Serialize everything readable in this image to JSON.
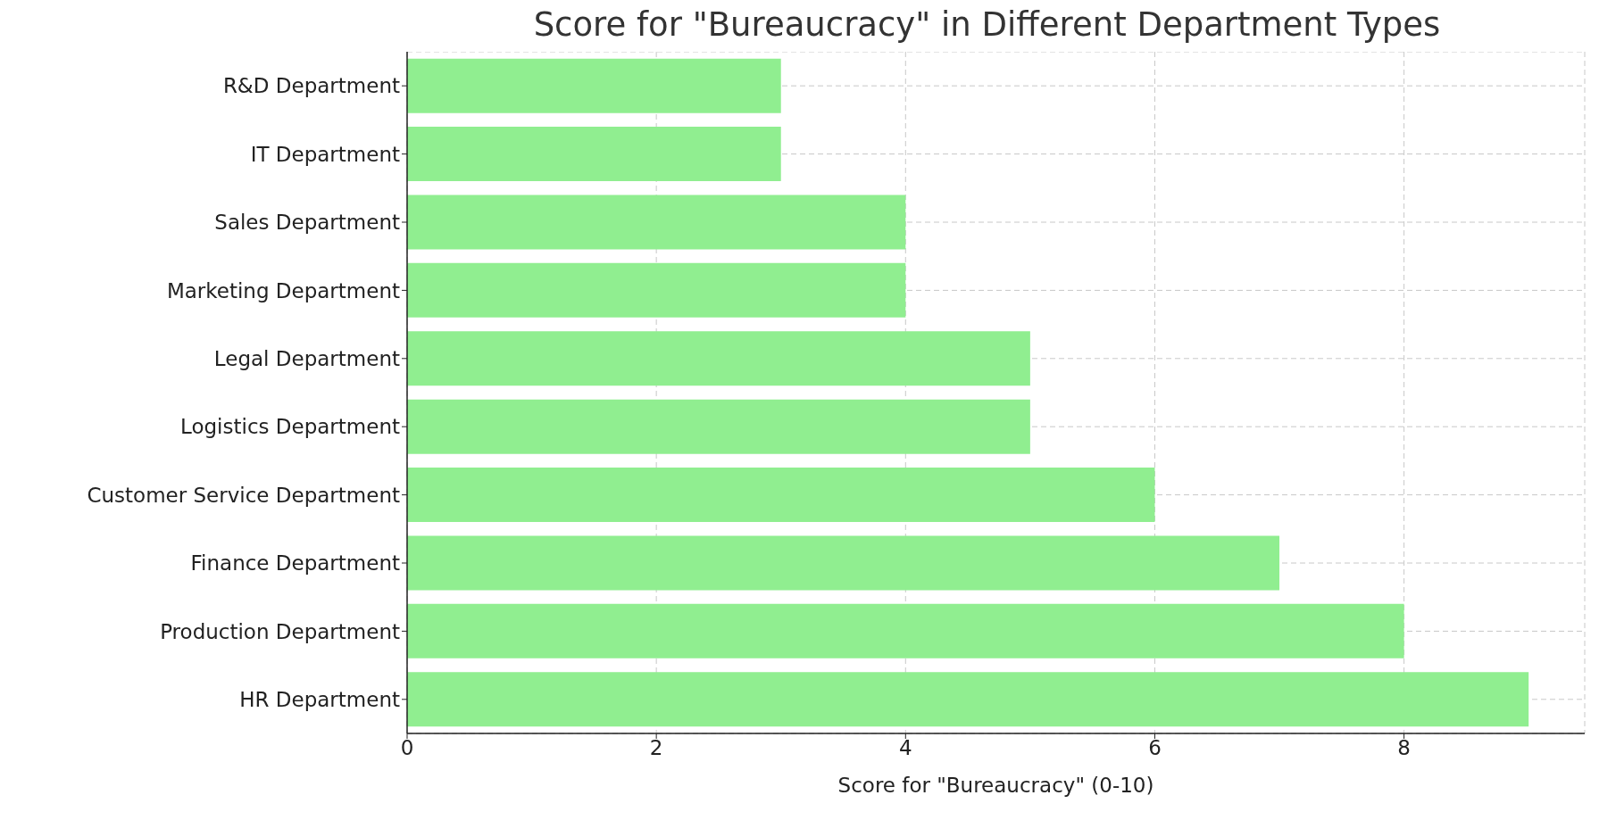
{
  "chart_data": {
    "type": "bar",
    "orientation": "horizontal",
    "title": "Score for \"Bureaucracy\" in Different Department Types",
    "xlabel": "Score for \"Bureaucracy\" (0-10)",
    "categories": [
      "R&D Department",
      "IT Department",
      "Sales Department",
      "Marketing Department",
      "Legal Department",
      "Logistics Department",
      "Customer Service Department",
      "Finance Department",
      "Production Department",
      "HR Department"
    ],
    "values": [
      3,
      3,
      4,
      4,
      5,
      5,
      6,
      7,
      8,
      9
    ],
    "color": "#90ee90",
    "xlim": [
      0,
      9.45
    ],
    "xticks": [
      0,
      2,
      4,
      6,
      8
    ],
    "grid": true
  }
}
